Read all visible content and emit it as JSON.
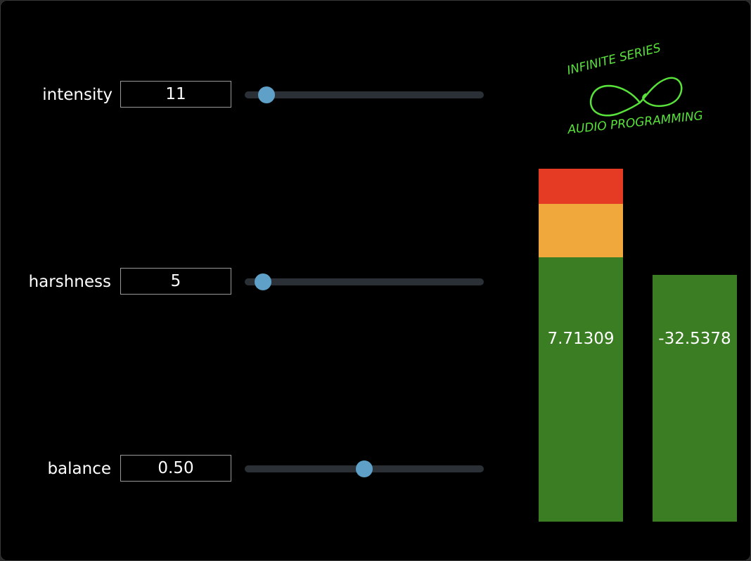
{
  "params": [
    {
      "label": "intensity",
      "value": "11",
      "slider_fraction": 0.09
    },
    {
      "label": "harshness",
      "value": "5",
      "slider_fraction": 0.075
    },
    {
      "label": "balance",
      "value": "0.50",
      "slider_fraction": 0.5
    }
  ],
  "meters": [
    {
      "value_label": "7.71309",
      "level_fraction": 1.0
    },
    {
      "value_label": "-32.5378",
      "level_fraction": 0.7
    }
  ],
  "logo": {
    "top_text": "INFINITE SERIES",
    "bottom_text": "AUDIO PROGRAMMING"
  },
  "colors": {
    "slider_thumb": "#5ea0c8",
    "meter_green": "#3a7d23",
    "meter_orange": "#f0a83c",
    "meter_red": "#e53a24",
    "logo_green": "#58e23a"
  }
}
